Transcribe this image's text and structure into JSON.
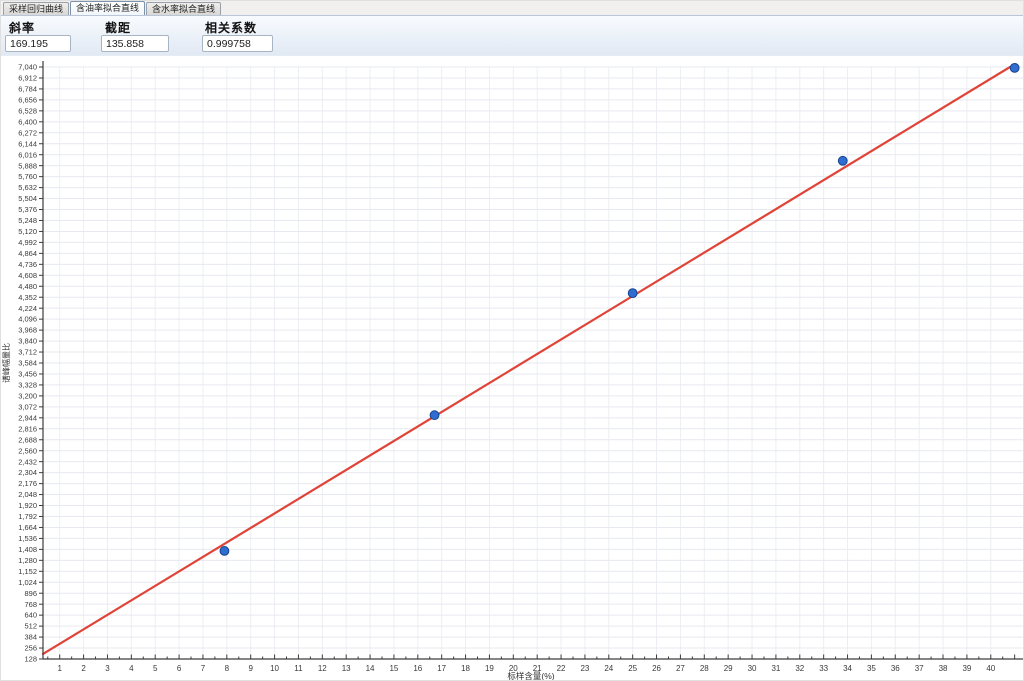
{
  "tabs": {
    "items": [
      {
        "label": "采样回归曲线",
        "active": false
      },
      {
        "label": "含油率拟合直线",
        "active": true
      },
      {
        "label": "含水率拟合直线",
        "active": false
      }
    ]
  },
  "params": {
    "slope": {
      "label": "斜率",
      "value": "169.195"
    },
    "intercept": {
      "label": "截距",
      "value": "135.858"
    },
    "correlation": {
      "label": "相关系数",
      "value": "0.999758"
    }
  },
  "chart_data": {
    "type": "scatter",
    "title": "",
    "xlabel": "标样含量(%)",
    "ylabel": "谱峰幅量比",
    "x_ticks": {
      "min": 1,
      "max": 40,
      "step": 1
    },
    "y_ticks": {
      "min": 128,
      "max": 7040,
      "step": 128,
      "format": "thousands-comma"
    },
    "xlim": [
      0.3,
      41.35
    ],
    "ylim": [
      128,
      7040
    ],
    "grid": true,
    "legend": false,
    "points": [
      {
        "x": 7.9,
        "y": 1390
      },
      {
        "x": 16.7,
        "y": 2975
      },
      {
        "x": 25.0,
        "y": 4400
      },
      {
        "x": 33.8,
        "y": 5945
      },
      {
        "x": 41.0,
        "y": 7030
      }
    ],
    "fit_line": {
      "slope": 169.195,
      "intercept": 135.858,
      "x_start": 0.3,
      "x_end": 40.9
    },
    "colors": {
      "fit_line": "#e04438",
      "point_fill": "#2f6ed0",
      "point_stroke": "#16418f",
      "grid_h": "#e6e9ef",
      "grid_v": "#eceef3",
      "axis": "#3c3c3c",
      "tick_text": "#3a3a3a"
    }
  }
}
